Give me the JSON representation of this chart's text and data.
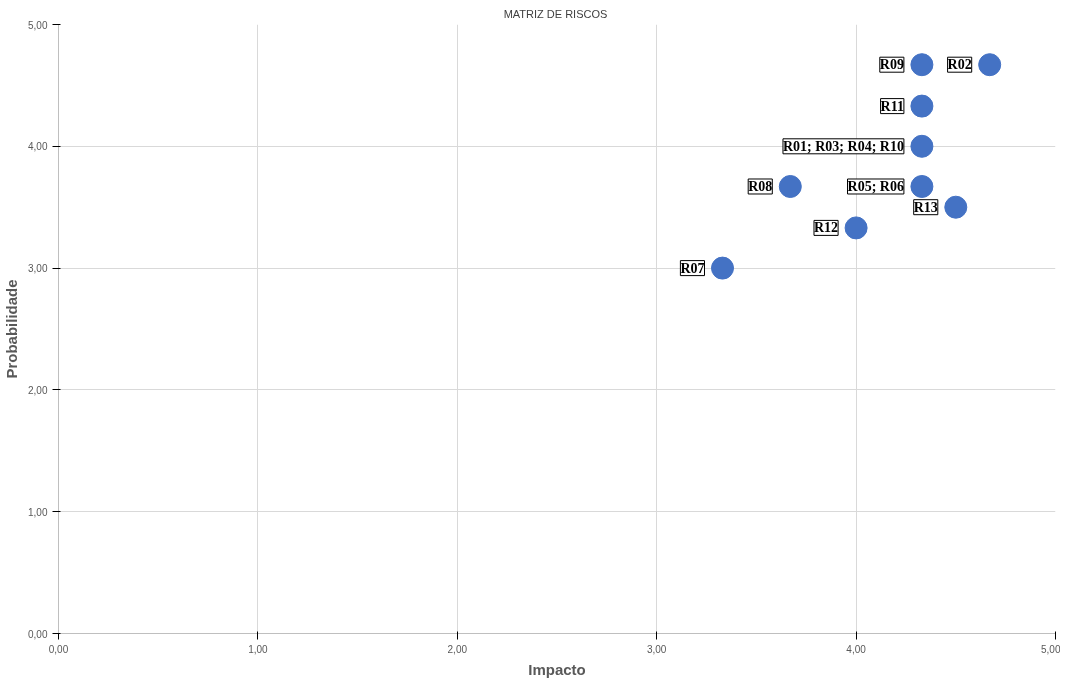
{
  "chart_data": {
    "type": "scatter",
    "title": "MATRIZ  DE RISCOS",
    "xlabel": "Impacto",
    "ylabel": "Probabilidade",
    "x": [
      4.33,
      4.67,
      4.33,
      4.33,
      3.67,
      4.33,
      4.5,
      4.0,
      3.33
    ],
    "series": [
      {
        "color": "#4472c4",
        "values": [
          4.67,
          4.67,
          4.33,
          4.0,
          3.67,
          3.67,
          3.5,
          3.33,
          3.0
        ]
      }
    ],
    "marker": "circle",
    "grid": true,
    "xlim": [
      0,
      5
    ],
    "ylim": [
      0,
      5
    ],
    "xticks": [
      {
        "value": 0,
        "label": "0,00"
      },
      {
        "value": 1,
        "label": "1,00"
      },
      {
        "value": 2,
        "label": "2,00"
      },
      {
        "value": 3,
        "label": "3,00"
      },
      {
        "value": 4,
        "label": "4,00"
      },
      {
        "value": 5,
        "label": "5,00"
      }
    ],
    "yticks": [
      {
        "value": 0,
        "label": "0,00"
      },
      {
        "value": 1,
        "label": "1,00"
      },
      {
        "value": 2,
        "label": "2,00"
      },
      {
        "value": 3,
        "label": "3,00"
      },
      {
        "value": 4,
        "label": "4,00"
      },
      {
        "value": 5,
        "label": "5,00"
      }
    ],
    "annotations": [
      {
        "text": "R09",
        "x": 4.33,
        "y": 4.67
      },
      {
        "text": "R02",
        "x": 4.67,
        "y": 4.67
      },
      {
        "text": "R11",
        "x": 4.33,
        "y": 4.33
      },
      {
        "text": "R01; R03; R04; R10",
        "x": 4.33,
        "y": 4.0
      },
      {
        "text": "R08",
        "x": 3.67,
        "y": 3.67
      },
      {
        "text": "R05; R06",
        "x": 4.33,
        "y": 3.67
      },
      {
        "text": "R13",
        "x": 4.5,
        "y": 3.5
      },
      {
        "text": "R12",
        "x": 4.0,
        "y": 3.33
      },
      {
        "text": "R07",
        "x": 3.33,
        "y": 3.0
      }
    ]
  }
}
